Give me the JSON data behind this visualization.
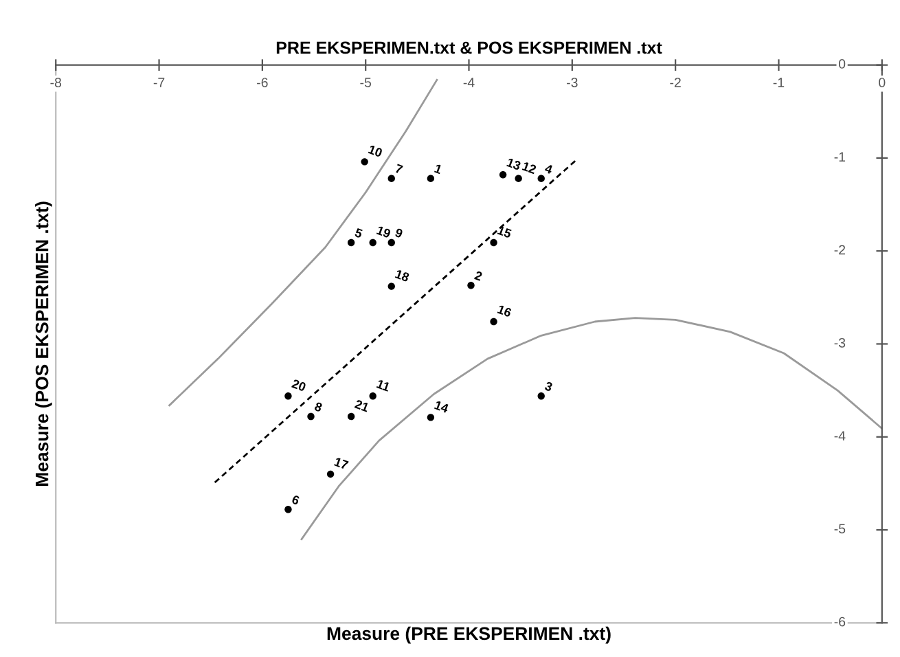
{
  "chart_data": {
    "type": "line",
    "title": "PRE EKSPERIMEN.txt & POS EKSPERIMEN .txt",
    "xlabel": "Measure (PRE EKSPERIMEN .txt)",
    "ylabel": "Measure (POS EKSPERIMEN .txt)",
    "xlim": [
      -8,
      0
    ],
    "ylim": [
      -6,
      0
    ],
    "xticks": [
      -8,
      -7,
      -6,
      -5,
      -4,
      -3,
      -2,
      -1,
      0
    ],
    "yticks": [
      -6,
      -5,
      -4,
      -3,
      -2,
      -1,
      0
    ],
    "grid": false,
    "legend": false,
    "annotations": [
      {
        "text": "1",
        "x": -4.37,
        "y": -1.22
      },
      {
        "text": "2",
        "x": -3.98,
        "y": -2.37
      },
      {
        "text": "3",
        "x": -3.3,
        "y": -3.56
      },
      {
        "text": "4",
        "x": -3.3,
        "y": -1.22
      },
      {
        "text": "5",
        "x": -5.14,
        "y": -1.91
      },
      {
        "text": "6",
        "x": -5.75,
        "y": -4.78
      },
      {
        "text": "7",
        "x": -4.75,
        "y": -1.22
      },
      {
        "text": "8",
        "x": -5.53,
        "y": -3.78
      },
      {
        "text": "9",
        "x": -4.75,
        "y": -1.91
      },
      {
        "text": "10",
        "x": -5.01,
        "y": -1.04
      },
      {
        "text": "11",
        "x": -4.93,
        "y": -3.56
      },
      {
        "text": "12",
        "x": -3.52,
        "y": -1.22
      },
      {
        "text": "13",
        "x": -3.67,
        "y": -1.18
      },
      {
        "text": "14",
        "x": -4.37,
        "y": -3.79
      },
      {
        "text": "15",
        "x": -3.76,
        "y": -1.91
      },
      {
        "text": "16",
        "x": -3.76,
        "y": -2.76
      },
      {
        "text": "17",
        "x": -5.34,
        "y": -4.4
      },
      {
        "text": "18",
        "x": -4.75,
        "y": -2.38
      },
      {
        "text": "19",
        "x": -4.93,
        "y": -1.91
      },
      {
        "text": "20",
        "x": -5.75,
        "y": -3.56
      },
      {
        "text": "21",
        "x": -5.14,
        "y": -3.78
      }
    ],
    "series": [
      {
        "type": "scatter",
        "color": "#000000",
        "x": [
          -4.37,
          -3.98,
          -3.3,
          -3.3,
          -5.14,
          -5.75,
          -4.75,
          -5.53,
          -4.75,
          -5.01,
          -4.93,
          -3.52,
          -3.67,
          -4.37,
          -3.76,
          -3.76,
          -5.34,
          -4.75,
          -4.93,
          -5.75,
          -5.14
        ],
        "values": [
          -1.22,
          -2.37,
          -3.56,
          -1.22,
          -1.91,
          -4.78,
          -1.22,
          -3.78,
          -1.91,
          -1.04,
          -3.56,
          -1.22,
          -1.18,
          -3.79,
          -1.91,
          -2.76,
          -4.4,
          -2.38,
          -1.91,
          -3.56,
          -3.78
        ]
      },
      {
        "line_style": "dashed",
        "color": "#000000",
        "x": [
          -6.46,
          -2.97
        ],
        "values": [
          -4.49,
          -1.03
        ]
      },
      {
        "line_style": "solid",
        "color": "#9a9a9a",
        "x": [
          -6.9,
          -6.43,
          -5.91,
          -5.39,
          -5.0,
          -4.61,
          -4.31
        ],
        "values": [
          -3.66,
          -3.16,
          -2.57,
          -1.96,
          -1.37,
          -0.71,
          -0.16
        ]
      },
      {
        "line_style": "solid",
        "color": "#9a9a9a",
        "x": [
          -5.62,
          -5.26,
          -4.87,
          -4.34,
          -3.82,
          -3.3,
          -2.78,
          -2.39,
          -2.0,
          -1.47,
          -0.95,
          -0.43,
          0.0
        ],
        "values": [
          -5.1,
          -4.53,
          -4.04,
          -3.54,
          -3.16,
          -2.91,
          -2.76,
          -2.72,
          -2.74,
          -2.87,
          -3.1,
          -3.5,
          -3.91
        ]
      }
    ]
  }
}
